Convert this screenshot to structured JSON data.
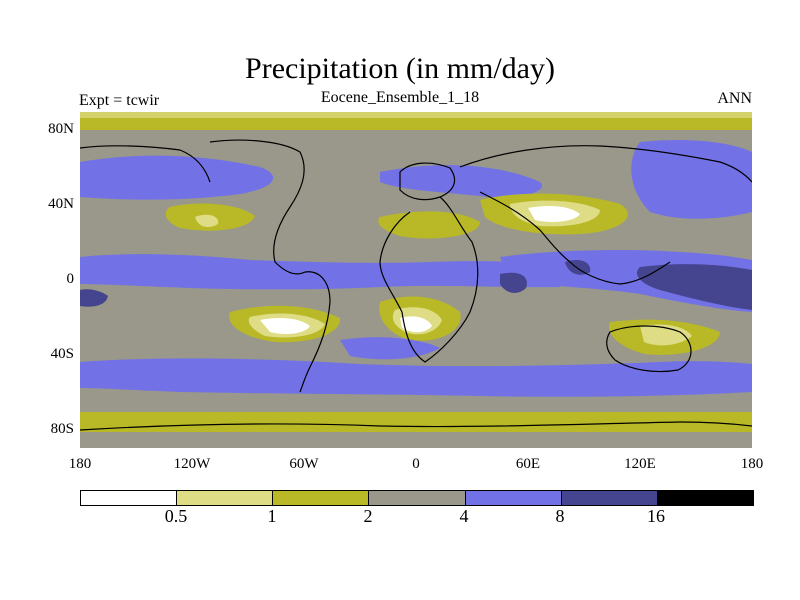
{
  "title": "Precipitation (in mm/day)",
  "left_label": "Expt = tcwir",
  "center_label": "Eocene_Ensemble_1_18",
  "right_label": "ANN",
  "lat_labels": [
    "80N",
    "40N",
    "0",
    "40S",
    "80S"
  ],
  "lon_labels": [
    "180",
    "120W",
    "60W",
    "0",
    "60E",
    "120E",
    "180"
  ],
  "colorbar": {
    "colors": [
      "#ffffff",
      "#dedd86",
      "#b9b928",
      "#99988a",
      "#7272e6",
      "#44448f",
      "#000000"
    ],
    "labels": [
      "0.5",
      "1",
      "2",
      "4",
      "8",
      "16"
    ]
  },
  "palette": {
    "lt0_5": "#ffffff",
    "v0_5_1": "#dedd86",
    "v1_2": "#b9b928",
    "v2_4": "#99988a",
    "v4_8": "#7272e6",
    "v8_16": "#44448f"
  }
}
